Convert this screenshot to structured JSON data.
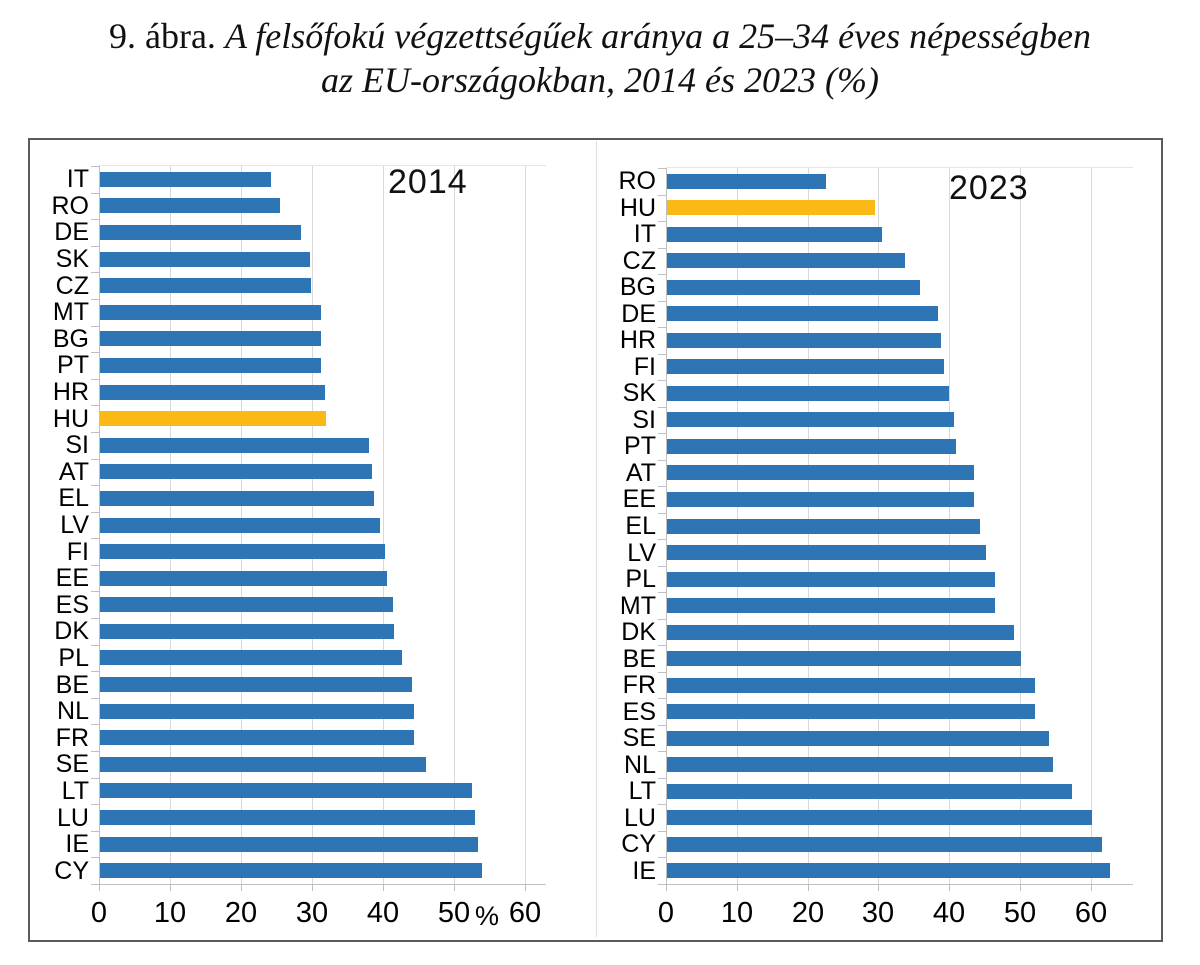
{
  "figure": {
    "title_prefix": "9. ábra.",
    "title_line1_italic": "A felsőfokú végzettségűek aránya a 25–34 éves népességben",
    "title_line2_italic": "az EU-országokban, 2014 és 2023 (%)"
  },
  "colors": {
    "bar_blue": "#2E75B6",
    "bar_highlight_gold": "#FBB916",
    "gridline_gray": "#D9D9D9",
    "axis_gray": "#BFBFBF",
    "frame_gray": "#5A5A5A"
  },
  "chart_data": [
    {
      "type": "bar",
      "orientation": "horizontal",
      "year_label": "2014",
      "percent_label": "%",
      "highlight_category": "HU",
      "x_ticks": [
        "0",
        "10",
        "20",
        "30",
        "40",
        "50",
        "60"
      ],
      "xlim": [
        0,
        63
      ],
      "grid": true,
      "categories": [
        "IT",
        "RO",
        "DE",
        "SK",
        "CZ",
        "MT",
        "BG",
        "PT",
        "HR",
        "HU",
        "SI",
        "AT",
        "EL",
        "LV",
        "FI",
        "EE",
        "ES",
        "DK",
        "PL",
        "BE",
        "NL",
        "FR",
        "SE",
        "LT",
        "LU",
        "IE",
        "CY"
      ],
      "values": [
        24.1,
        25.3,
        28.3,
        29.6,
        29.8,
        31.1,
        31.1,
        31.2,
        31.7,
        31.8,
        37.9,
        38.4,
        38.6,
        39.4,
        40.2,
        40.5,
        41.3,
        41.5,
        42.5,
        44.0,
        44.3,
        44.3,
        45.9,
        52.4,
        52.8,
        53.3,
        53.9
      ]
    },
    {
      "type": "bar",
      "orientation": "horizontal",
      "year_label": "2023",
      "percent_label": "",
      "highlight_category": "HU",
      "x_ticks": [
        "0",
        "10",
        "20",
        "30",
        "40",
        "50",
        "60"
      ],
      "xlim": [
        0,
        66
      ],
      "grid": true,
      "categories": [
        "RO",
        "HU",
        "IT",
        "CZ",
        "BG",
        "DE",
        "HR",
        "FI",
        "SK",
        "SI",
        "PT",
        "AT",
        "EE",
        "EL",
        "LV",
        "PL",
        "MT",
        "DK",
        "BE",
        "FR",
        "ES",
        "SE",
        "NL",
        "LT",
        "LU",
        "CY",
        "IE"
      ],
      "values": [
        22.5,
        29.4,
        30.4,
        33.6,
        35.7,
        38.3,
        38.7,
        39.2,
        39.9,
        40.6,
        40.9,
        43.4,
        43.4,
        44.3,
        45.1,
        46.3,
        46.3,
        49.1,
        50.0,
        52.0,
        52.0,
        54.0,
        54.5,
        57.3,
        60.1,
        61.5,
        62.6
      ]
    }
  ]
}
